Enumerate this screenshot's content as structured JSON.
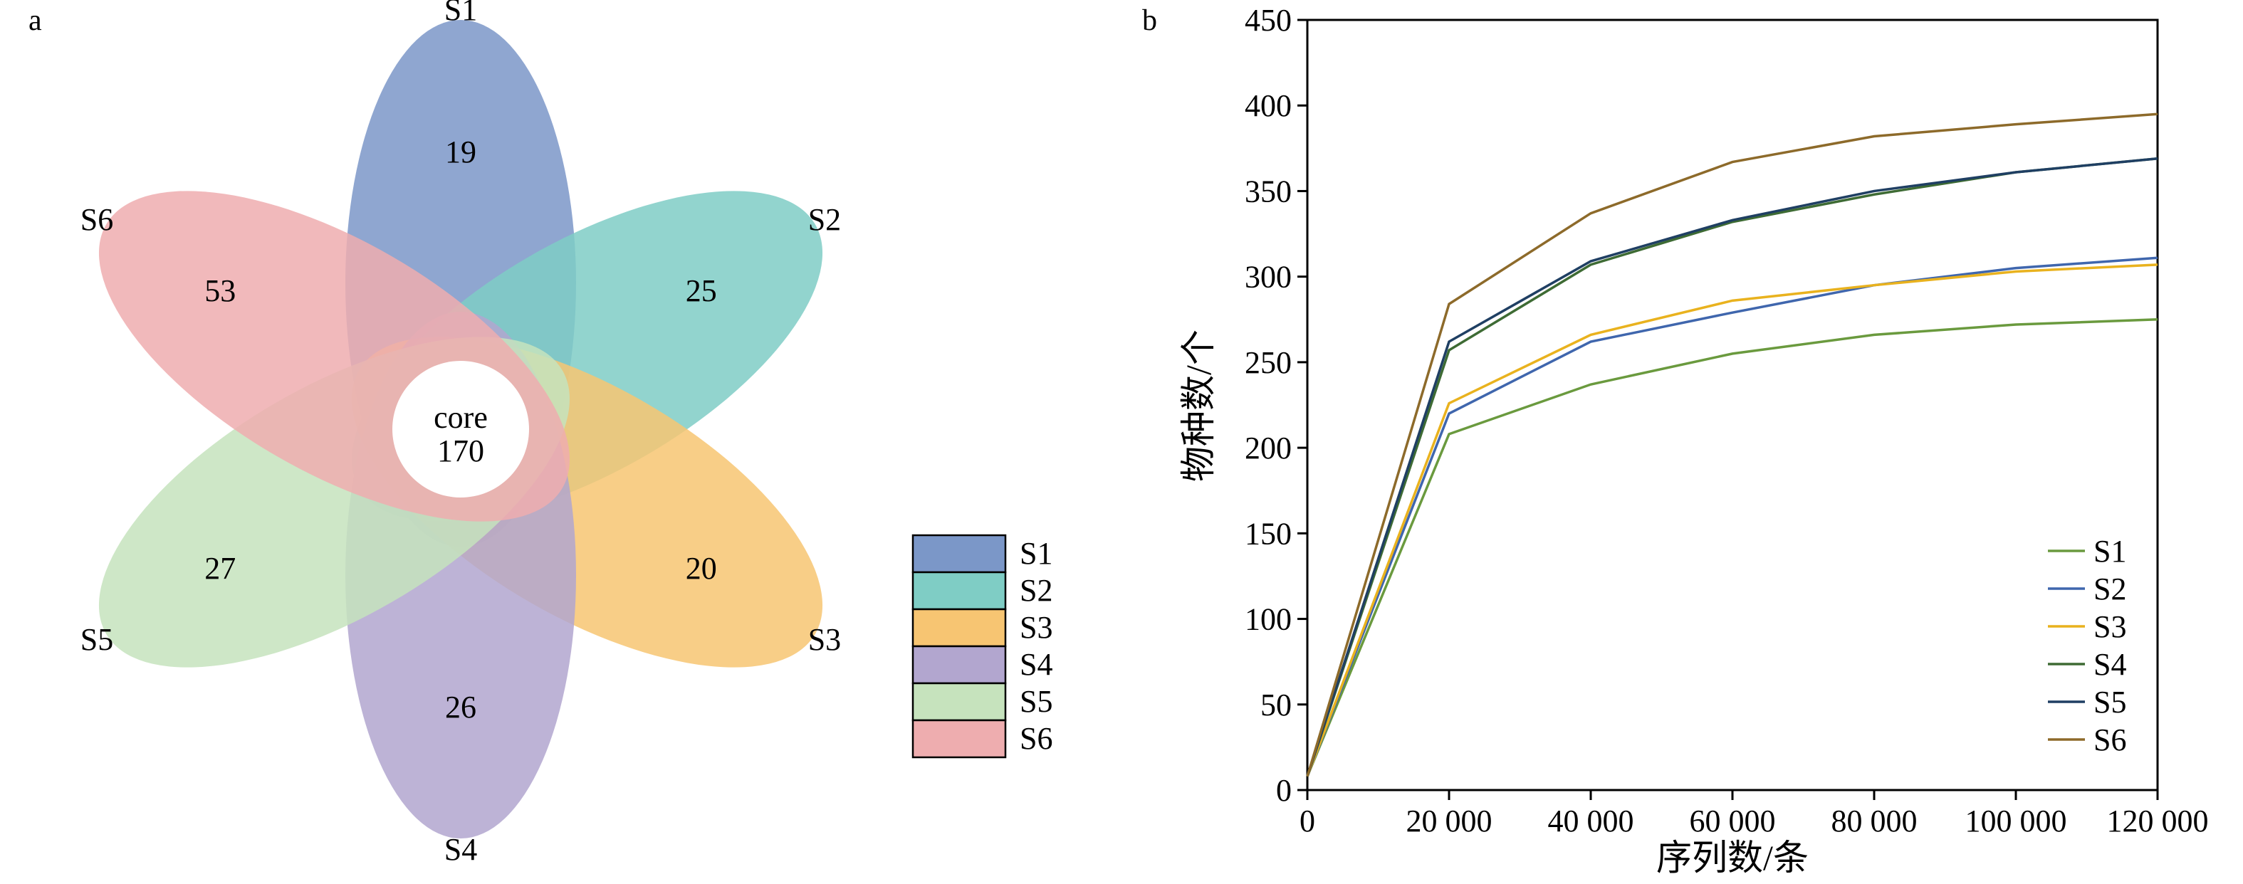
{
  "panel_a": {
    "label": "a",
    "center": {
      "line1": "core",
      "line2": "170"
    },
    "petals": [
      {
        "name": "S1",
        "count": "19",
        "color": "#7b97c8"
      },
      {
        "name": "S2",
        "count": "25",
        "color": "#7fcdc5"
      },
      {
        "name": "S3",
        "count": "20",
        "color": "#f7c572"
      },
      {
        "name": "S4",
        "count": "26",
        "color": "#b2a6cf"
      },
      {
        "name": "S5",
        "count": "27",
        "color": "#c6e3bd"
      },
      {
        "name": "S6",
        "count": "53",
        "color": "#eeadaf"
      }
    ],
    "legend": [
      "S1",
      "S2",
      "S3",
      "S4",
      "S5",
      "S6"
    ]
  },
  "panel_b": {
    "label": "b"
  },
  "chart_data": [
    {
      "type": "venn",
      "sets": [
        "S1",
        "S2",
        "S3",
        "S4",
        "S5",
        "S6"
      ],
      "unique_counts": [
        19,
        25,
        20,
        26,
        27,
        53
      ],
      "core": 170
    },
    {
      "type": "line",
      "xlabel": "序列数/条",
      "ylabel": "物种数/个",
      "x": [
        0,
        20000,
        40000,
        60000,
        80000,
        100000,
        120000
      ],
      "xticks": [
        "0",
        "20 000",
        "40 000",
        "60 000",
        "80 000",
        "100 000",
        "120 000"
      ],
      "xlim": [
        0,
        120000
      ],
      "yticks": [
        "0",
        "50",
        "100",
        "150",
        "200",
        "250",
        "300",
        "350",
        "400",
        "450"
      ],
      "ylim": [
        0,
        450
      ],
      "legend_position": "bottom-right",
      "series": [
        {
          "name": "S1",
          "color": "#6a9a3e",
          "values": [
            8,
            208,
            237,
            255,
            266,
            272,
            275
          ]
        },
        {
          "name": "S2",
          "color": "#3f66ad",
          "values": [
            8,
            220,
            262,
            279,
            295,
            305,
            311
          ]
        },
        {
          "name": "S3",
          "color": "#e9b21e",
          "values": [
            8,
            226,
            266,
            286,
            295,
            303,
            307
          ]
        },
        {
          "name": "S4",
          "color": "#3e6b34",
          "values": [
            8,
            257,
            307,
            332,
            348,
            361,
            369
          ]
        },
        {
          "name": "S5",
          "color": "#1f3f63",
          "values": [
            8,
            262,
            309,
            333,
            350,
            361,
            369
          ]
        },
        {
          "name": "S6",
          "color": "#8d6a2a",
          "values": [
            8,
            284,
            337,
            367,
            382,
            389,
            395
          ]
        }
      ]
    }
  ]
}
